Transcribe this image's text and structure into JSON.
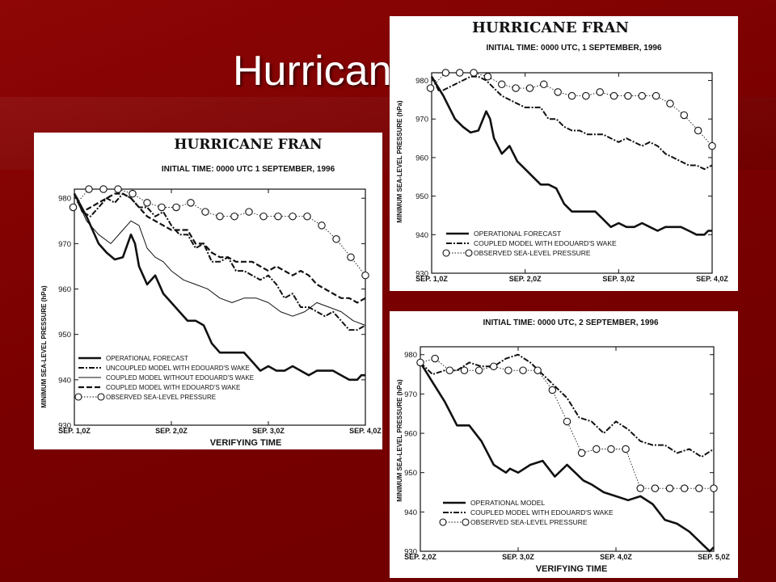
{
  "slide": {
    "title": "Hurricane Fran"
  },
  "colors": {
    "background": "#7a0000",
    "title": "#ffffff",
    "panel": "#ffffff",
    "ink": "#111111"
  },
  "chart_data": [
    {
      "type": "line",
      "title": "HURRICANE FRAN",
      "subtitle": "INITIAL TIME: 0000 UTC 1 SEPTEMBER, 1996",
      "xlabel": "VERIFYING TIME",
      "ylabel": "MINIMUM SEA-LEVEL PRESSURE (hPa)",
      "ylim": [
        930,
        982
      ],
      "xlim": [
        0,
        72
      ],
      "yticks": [
        930,
        940,
        950,
        960,
        970,
        980
      ],
      "xticks": [
        0,
        24,
        48,
        72
      ],
      "xticklabels": [
        "SEP. 1,0Z",
        "SEP. 2,0Z",
        "SEP. 3,0Z",
        "SEP. 4,0Z"
      ],
      "series": [
        {
          "name": "OPERATIONAL FORECAST",
          "style": "solid-thick",
          "x": [
            0,
            3,
            6,
            8,
            10,
            12,
            14,
            15,
            16,
            17,
            18,
            20,
            22,
            24,
            26,
            28,
            30,
            32,
            34,
            36,
            38,
            40,
            42,
            44,
            46,
            48,
            50,
            52,
            54,
            56,
            58,
            60,
            62,
            64,
            66,
            68,
            70,
            71,
            72
          ],
          "y": [
            981,
            976,
            970,
            968,
            966.5,
            967,
            972,
            970,
            965,
            963,
            961,
            963,
            959,
            957,
            955,
            953,
            953,
            952,
            948,
            946,
            946,
            946,
            946,
            944,
            942,
            943,
            942,
            942,
            943,
            942,
            941,
            942,
            942,
            942,
            941,
            940,
            940,
            941,
            941
          ]
        },
        {
          "name": "UNCOUPLED MODEL WITH EDOUARD'S WAKE",
          "style": "dash-dot",
          "x": [
            0,
            2,
            4,
            6,
            8,
            10,
            12,
            14,
            16,
            18,
            20,
            22,
            24,
            26,
            28,
            30,
            32,
            34,
            36,
            38,
            40,
            42,
            44,
            46,
            48,
            50,
            52,
            54,
            56,
            58,
            60,
            62,
            64,
            66,
            68,
            70,
            72
          ],
          "y": [
            981,
            977,
            976,
            978,
            980,
            979,
            981,
            980,
            978,
            978,
            976,
            977,
            974,
            972,
            972,
            969,
            970,
            966,
            966,
            967,
            964,
            964,
            963,
            962,
            963,
            961,
            958,
            959,
            956,
            956,
            955,
            954,
            955,
            953,
            951,
            951,
            952
          ]
        },
        {
          "name": "COUPLED MODEL WITHOUT EDOUARD'S WAKE",
          "style": "thin",
          "x": [
            0,
            3,
            6,
            9,
            12,
            14,
            16,
            18,
            20,
            22,
            24,
            27,
            30,
            33,
            36,
            39,
            42,
            45,
            48,
            51,
            54,
            57,
            60,
            63,
            66,
            69,
            72
          ],
          "y": [
            981,
            975,
            972,
            970,
            973,
            975,
            974,
            969,
            967,
            966,
            964,
            962,
            961,
            960,
            958,
            957,
            958,
            958,
            957,
            955,
            954,
            955,
            957,
            956,
            955,
            953,
            952
          ]
        },
        {
          "name": "COUPLED MODEL WITH EDOUARD'S WAKE",
          "style": "dashed",
          "x": [
            0,
            2,
            4,
            6,
            8,
            10,
            12,
            14,
            16,
            18,
            20,
            22,
            24,
            26,
            28,
            30,
            32,
            34,
            36,
            38,
            40,
            42,
            44,
            46,
            48,
            50,
            52,
            54,
            56,
            58,
            60,
            62,
            64,
            66,
            68,
            70,
            72
          ],
          "y": [
            981,
            977,
            978,
            979,
            980,
            981,
            981,
            980,
            978,
            976,
            975,
            974,
            973,
            973,
            973,
            970,
            970,
            968,
            967,
            967,
            966,
            966,
            966,
            965,
            964,
            965,
            964,
            963,
            964,
            963,
            961,
            960,
            959,
            958,
            958,
            957,
            958
          ]
        },
        {
          "name": "OBSERVED SEA-LEVEL PRESSURE",
          "style": "dotted-circles",
          "x": [
            -0.3,
            3.6,
            7.2,
            10.8,
            14.4,
            18,
            21.6,
            25.2,
            28.8,
            32.4,
            36,
            39.6,
            43.2,
            46.8,
            50.4,
            54,
            57.6,
            61.2,
            64.8,
            68.4,
            72
          ],
          "y": [
            978,
            982,
            982,
            982,
            981,
            979,
            978,
            978,
            979,
            977,
            976,
            976,
            977,
            976,
            976,
            976,
            976,
            974,
            971,
            967,
            963
          ]
        }
      ]
    },
    {
      "type": "line",
      "title": "HURRICANE FRAN",
      "subtitle": "INITIAL TIME: 0000 UTC, 1 SEPTEMBER, 1996",
      "xlabel": "",
      "ylabel": "MINIMUM SEA-LEVEL PRESSURE (hPa)",
      "ylim": [
        930,
        982
      ],
      "xlim": [
        0,
        72
      ],
      "yticks": [
        930,
        940,
        950,
        960,
        970,
        980
      ],
      "xticks": [
        0,
        24,
        48,
        72
      ],
      "xticklabels": [
        "SEP. 1,0Z",
        "SEP. 2,0Z",
        "SEP. 3,0Z",
        "SEP. 4,0Z"
      ],
      "series": [
        {
          "name": "OPERATIONAL FORECAST",
          "style": "solid-thick",
          "x": [
            0,
            3,
            6,
            8,
            10,
            12,
            14,
            15,
            16,
            17,
            18,
            20,
            22,
            24,
            26,
            28,
            30,
            32,
            34,
            36,
            38,
            40,
            42,
            44,
            46,
            48,
            50,
            52,
            54,
            56,
            58,
            60,
            62,
            64,
            66,
            68,
            70,
            71,
            72
          ],
          "y": [
            981,
            976,
            970,
            968,
            966.5,
            967,
            972,
            970,
            965,
            963,
            961,
            963,
            959,
            957,
            955,
            953,
            953,
            952,
            948,
            946,
            946,
            946,
            946,
            944,
            942,
            943,
            942,
            942,
            943,
            942,
            941,
            942,
            942,
            942,
            941,
            940,
            940,
            941,
            941
          ]
        },
        {
          "name": "COUPLED MODEL WITH EDOUARD'S WAKE",
          "style": "dash-dot",
          "x": [
            0,
            2,
            4,
            6,
            8,
            10,
            12,
            14,
            16,
            18,
            20,
            22,
            24,
            26,
            28,
            30,
            32,
            34,
            36,
            38,
            40,
            42,
            44,
            46,
            48,
            50,
            52,
            54,
            56,
            58,
            60,
            62,
            64,
            66,
            68,
            70,
            72
          ],
          "y": [
            981,
            977,
            978,
            979,
            980,
            981,
            981,
            980,
            978,
            976,
            975,
            974,
            973,
            973,
            973,
            970,
            970,
            968,
            967,
            967,
            966,
            966,
            966,
            965,
            964,
            965,
            964,
            963,
            964,
            963,
            961,
            960,
            959,
            958,
            958,
            957,
            958
          ]
        },
        {
          "name": "OBSERVED SEA-LEVEL PRESSURE",
          "style": "dotted-circles",
          "x": [
            -0.3,
            3.6,
            7.2,
            10.8,
            14.4,
            18,
            21.6,
            25.2,
            28.8,
            32.4,
            36,
            39.6,
            43.2,
            46.8,
            50.4,
            54,
            57.6,
            61.2,
            64.8,
            68.4,
            72
          ],
          "y": [
            978,
            982,
            982,
            982,
            981,
            979,
            978,
            978,
            979,
            977,
            976,
            976,
            977,
            976,
            976,
            976,
            976,
            974,
            971,
            967,
            963
          ]
        }
      ]
    },
    {
      "type": "line",
      "title": "",
      "subtitle": "INITIAL TIME: 0000 UTC, 2 SEPTEMBER, 1996",
      "xlabel": "VERIFYING TIME",
      "ylabel": "MINIMUM SEA-LEVEL PRESSURE (hPa)",
      "ylim": [
        930,
        982
      ],
      "xlim": [
        0,
        72
      ],
      "yticks": [
        930,
        940,
        950,
        960,
        970,
        980
      ],
      "xticks": [
        0,
        24,
        48,
        72
      ],
      "xticklabels": [
        "SEP. 2,0Z",
        "SEP. 3,0Z",
        "SEP. 4,0Z",
        "SEP. 5,0Z"
      ],
      "series": [
        {
          "name": "OPERATIONAL MODEL",
          "style": "solid-thick",
          "x": [
            0,
            3,
            6,
            9,
            12,
            15,
            18,
            21,
            22,
            24,
            27,
            30,
            33,
            36,
            38,
            40,
            42,
            45,
            48,
            51,
            54,
            57,
            60,
            63,
            66,
            69,
            71,
            72
          ],
          "y": [
            978,
            973,
            968,
            962,
            962,
            958,
            952,
            950,
            951,
            950,
            952,
            953,
            949,
            952,
            950,
            948,
            947,
            945,
            944,
            943,
            944,
            942,
            938,
            937,
            935,
            932,
            930,
            931
          ]
        },
        {
          "name": "COUPLED MODEL WITH EDOUARD'S WAKE",
          "style": "dash-dot",
          "x": [
            0,
            3,
            6,
            9,
            12,
            15,
            18,
            21,
            24,
            27,
            30,
            33,
            36,
            39,
            42,
            45,
            48,
            51,
            54,
            57,
            60,
            63,
            66,
            69,
            72
          ],
          "y": [
            978,
            975,
            976,
            976,
            978,
            977,
            977,
            979,
            980,
            978,
            975,
            972,
            969,
            964,
            963,
            960,
            963,
            961,
            958,
            957,
            957,
            955,
            956,
            954,
            956
          ]
        },
        {
          "name": "OBSERVED SEA-LEVEL PRESSURE",
          "style": "dotted-circles",
          "x": [
            0,
            3.6,
            7.2,
            10.8,
            14.4,
            18,
            21.6,
            25.2,
            28.8,
            32.4,
            36,
            39.6,
            43.2,
            46.8,
            50.4,
            54,
            57.6,
            61.2,
            64.8,
            68.4,
            72
          ],
          "y": [
            978,
            979,
            976,
            976,
            976,
            977,
            976,
            976,
            976,
            971,
            963,
            955,
            956,
            956,
            956,
            946,
            946,
            946,
            946,
            946,
            946
          ]
        }
      ]
    }
  ]
}
